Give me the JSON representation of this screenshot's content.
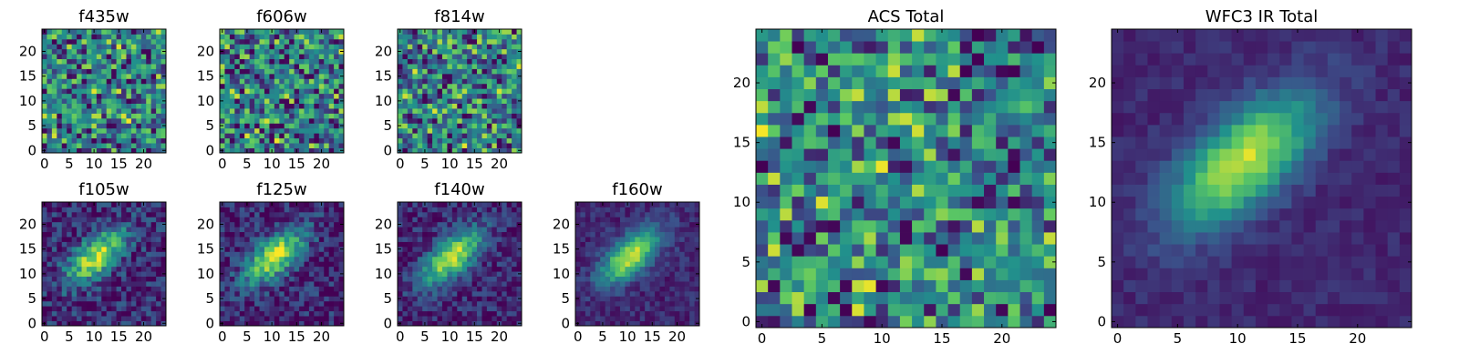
{
  "chart_data": [
    {
      "type": "heatmap",
      "title": "f435w",
      "size": 25,
      "seed": 11,
      "pattern": "noise",
      "xticks": [
        "0",
        "5",
        "10",
        "15",
        "20"
      ],
      "yticks": [
        "0",
        "5",
        "10",
        "15",
        "20"
      ]
    },
    {
      "type": "heatmap",
      "title": "f606w",
      "size": 25,
      "seed": 23,
      "pattern": "noise",
      "xticks": [
        "0",
        "5",
        "10",
        "15",
        "20"
      ],
      "yticks": [
        "0",
        "5",
        "10",
        "15",
        "20"
      ]
    },
    {
      "type": "heatmap",
      "title": "f814w",
      "size": 25,
      "seed": 37,
      "pattern": "noise",
      "xticks": [
        "0",
        "5",
        "10",
        "15",
        "20"
      ],
      "yticks": [
        "0",
        "5",
        "10",
        "15",
        "20"
      ]
    },
    {
      "type": "heatmap",
      "title": "f105w",
      "size": 25,
      "seed": 41,
      "pattern": "galaxy",
      "noise": 0.2,
      "xticks": [
        "0",
        "5",
        "10",
        "15",
        "20"
      ],
      "yticks": [
        "0",
        "5",
        "10",
        "15",
        "20"
      ]
    },
    {
      "type": "heatmap",
      "title": "f125w",
      "size": 25,
      "seed": 53,
      "pattern": "galaxy",
      "noise": 0.18,
      "xticks": [
        "0",
        "5",
        "10",
        "15",
        "20"
      ],
      "yticks": [
        "0",
        "5",
        "10",
        "15",
        "20"
      ]
    },
    {
      "type": "heatmap",
      "title": "f140w",
      "size": 25,
      "seed": 67,
      "pattern": "galaxy",
      "noise": 0.15,
      "xticks": [
        "0",
        "5",
        "10",
        "15",
        "20"
      ],
      "yticks": [
        "0",
        "5",
        "10",
        "15",
        "20"
      ]
    },
    {
      "type": "heatmap",
      "title": "f160w",
      "size": 25,
      "seed": 79,
      "pattern": "galaxy",
      "noise": 0.1,
      "xticks": [
        "0",
        "5",
        "10",
        "15",
        "20"
      ],
      "yticks": [
        "0",
        "5",
        "10",
        "15",
        "20"
      ]
    },
    {
      "type": "heatmap",
      "title": "ACS Total",
      "size": 25,
      "seed": 97,
      "pattern": "noise",
      "xticks": [
        "0",
        "5",
        "10",
        "15",
        "20"
      ],
      "yticks": [
        "0",
        "5",
        "10",
        "15",
        "20"
      ]
    },
    {
      "type": "heatmap",
      "title": "WFC3 IR Total",
      "size": 25,
      "seed": 101,
      "pattern": "galaxy",
      "noise": 0.06,
      "xticks": [
        "0",
        "5",
        "10",
        "15",
        "20"
      ],
      "yticks": [
        "0",
        "5",
        "10",
        "15",
        "20"
      ]
    }
  ],
  "colormap": [
    "#440154",
    "#3b528b",
    "#21918c",
    "#5ec962",
    "#fde725"
  ]
}
